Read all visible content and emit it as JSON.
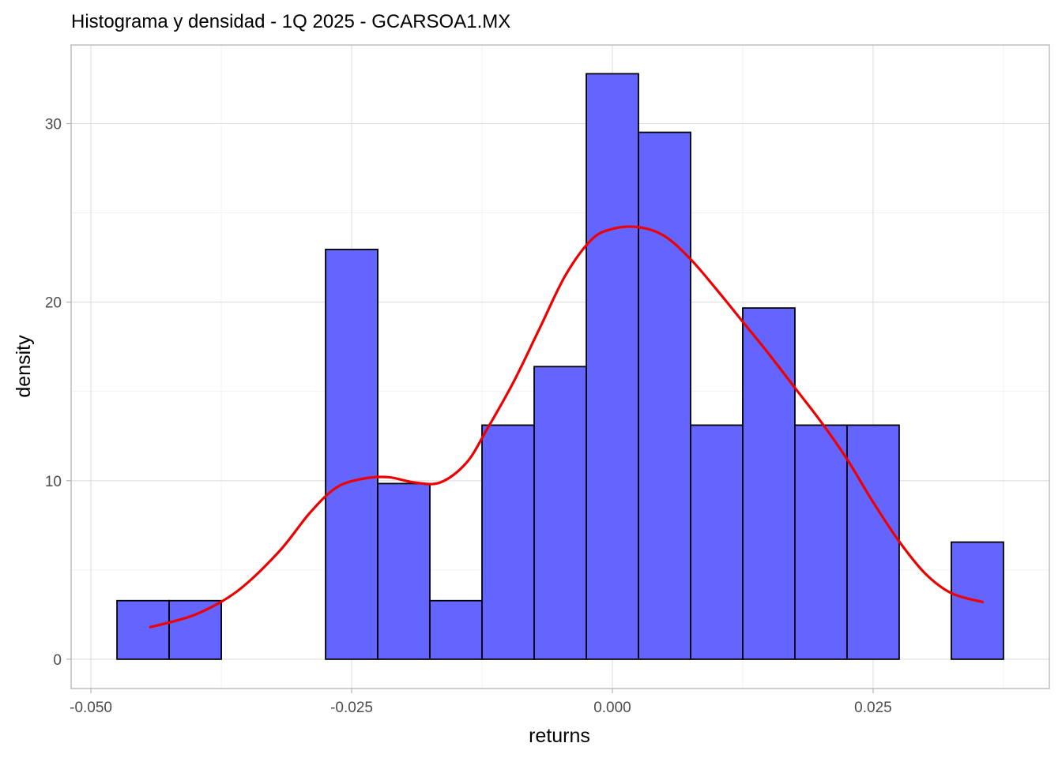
{
  "chart_data": {
    "type": "bar",
    "title": "Histograma y densidad - 1Q 2025 - GCARSOA1.MX",
    "xlabel": "returns",
    "ylabel": "density",
    "xlim": [
      -0.0519,
      0.0419
    ],
    "ylim": [
      -1.64,
      34.4
    ],
    "x_ticks": [
      -0.05,
      -0.025,
      0.0,
      0.025
    ],
    "x_tick_labels": [
      "-0.050",
      "-0.025",
      "0.000",
      "0.025"
    ],
    "y_ticks": [
      0,
      10,
      20,
      30
    ],
    "y_tick_labels": [
      "0",
      "10",
      "20",
      "30"
    ],
    "grid": true,
    "series": [
      {
        "kind": "histogram",
        "color": "#6464ff",
        "bins": [
          {
            "x0": -0.0475,
            "x1": -0.0425,
            "value": 3.28
          },
          {
            "x0": -0.0425,
            "x1": -0.0375,
            "value": 3.28
          },
          {
            "x0": -0.0375,
            "x1": -0.0325,
            "value": 0
          },
          {
            "x0": -0.0325,
            "x1": -0.0275,
            "value": 0
          },
          {
            "x0": -0.0275,
            "x1": -0.0225,
            "value": 22.95
          },
          {
            "x0": -0.0225,
            "x1": -0.0175,
            "value": 9.84
          },
          {
            "x0": -0.0175,
            "x1": -0.0125,
            "value": 3.28
          },
          {
            "x0": -0.0125,
            "x1": -0.0075,
            "value": 13.11
          },
          {
            "x0": -0.0075,
            "x1": -0.0025,
            "value": 16.39
          },
          {
            "x0": -0.0025,
            "x1": 0.0025,
            "value": 32.79
          },
          {
            "x0": 0.0025,
            "x1": 0.0075,
            "value": 29.51
          },
          {
            "x0": 0.0075,
            "x1": 0.0125,
            "value": 13.11
          },
          {
            "x0": 0.0125,
            "x1": 0.0175,
            "value": 19.67
          },
          {
            "x0": 0.0175,
            "x1": 0.0225,
            "value": 13.11
          },
          {
            "x0": 0.0225,
            "x1": 0.0275,
            "value": 13.11
          },
          {
            "x0": 0.0275,
            "x1": 0.0325,
            "value": 0
          },
          {
            "x0": 0.0325,
            "x1": 0.0375,
            "value": 6.56
          }
        ]
      },
      {
        "kind": "density",
        "color": "#ee0000",
        "x": [
          -0.0443,
          -0.04,
          -0.036,
          -0.032,
          -0.029,
          -0.0265,
          -0.024,
          -0.0215,
          -0.019,
          -0.0165,
          -0.014,
          -0.012,
          -0.0095,
          -0.007,
          -0.0045,
          -0.002,
          0.0,
          0.0025,
          0.005,
          0.0075,
          0.01,
          0.0125,
          0.015,
          0.0175,
          0.02,
          0.0225,
          0.025,
          0.0275,
          0.03,
          0.0325,
          0.0355
        ],
        "y": [
          1.8,
          2.5,
          3.8,
          6.0,
          8.2,
          9.6,
          10.1,
          10.2,
          9.9,
          9.9,
          11.0,
          12.9,
          15.5,
          18.5,
          21.5,
          23.5,
          24.1,
          24.2,
          23.7,
          22.4,
          20.7,
          18.9,
          17.1,
          15.2,
          13.3,
          11.2,
          8.8,
          6.6,
          4.8,
          3.7,
          3.2
        ]
      }
    ]
  }
}
